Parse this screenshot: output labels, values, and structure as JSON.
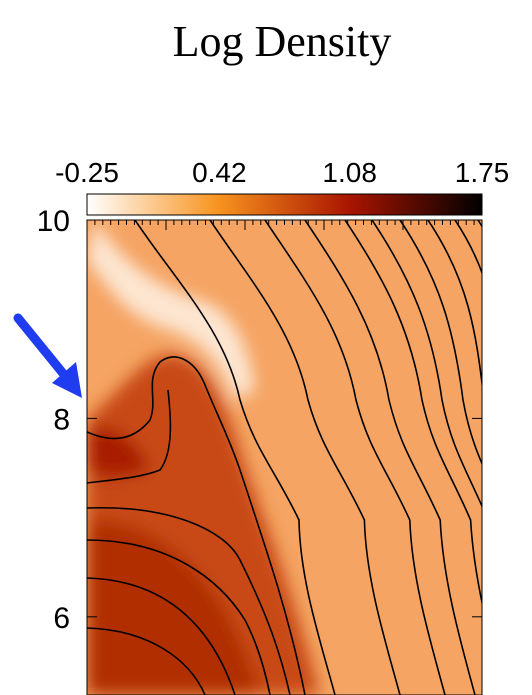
{
  "chart_data": {
    "type": "heatmap",
    "title": "Log Density",
    "colorbar": {
      "clim": [
        -0.25,
        1.75
      ],
      "ticks": [
        -0.25,
        0.42,
        1.08,
        1.75
      ],
      "colormap": [
        "#ffffff",
        "#f7931e",
        "#a81400",
        "#000000"
      ]
    },
    "ylim": [
      5.2,
      10
    ],
    "yticks": [
      6,
      8,
      10
    ]
  }
}
